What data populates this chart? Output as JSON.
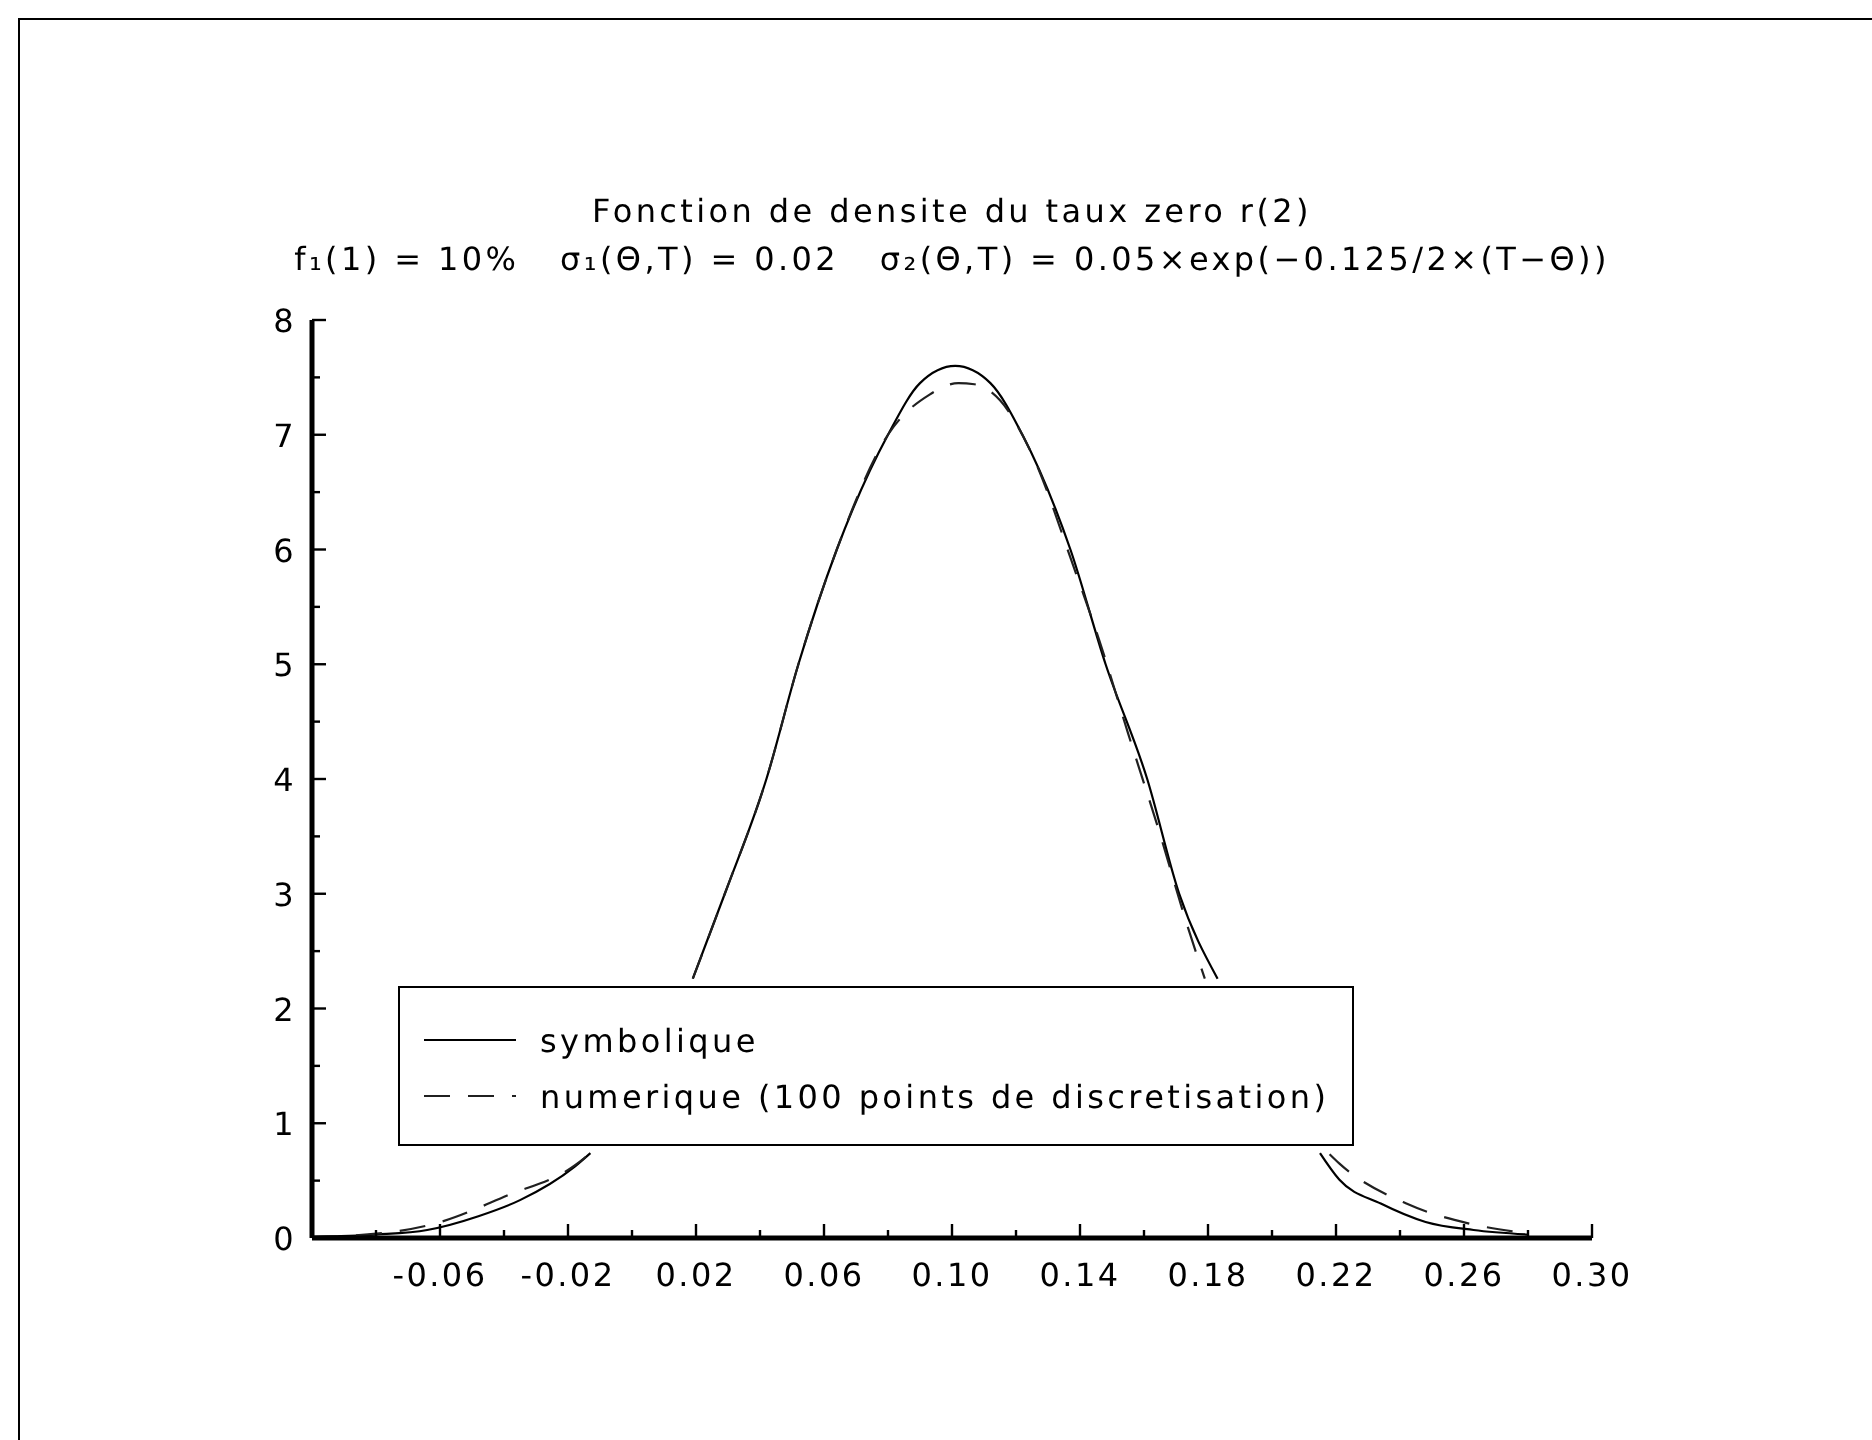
{
  "chart_data": {
    "type": "line",
    "title": "Fonction de densite du taux zero r(2)",
    "subtitle": "f₁(1) = 10%   σ₁(Θ,T) = 0.02   σ₂(Θ,T) = 0.05×exp(−0.125/2×(T−Θ))",
    "series": [
      {
        "name": "symbolique",
        "color": "#000000",
        "line_style": "solid",
        "x": [
          -0.1,
          -0.08,
          -0.064,
          -0.048,
          -0.035,
          -0.018,
          -0.013,
          0.003,
          0.019,
          0.029,
          0.042,
          0.052,
          0.064,
          0.08,
          0.09,
          0.101,
          0.112,
          0.122,
          0.137,
          0.148,
          0.161,
          0.171,
          0.183,
          0.199,
          0.215,
          0.221,
          0.234,
          0.248,
          0.263,
          0.28
        ],
        "values": [
          0.01,
          0.03,
          0.07,
          0.19,
          0.33,
          0.62,
          0.74,
          null,
          2.26,
          3.0,
          4.0,
          5.0,
          6.0,
          7.0,
          7.45,
          7.6,
          7.45,
          7.0,
          6.0,
          5.0,
          4.0,
          3.0,
          2.26,
          null,
          0.74,
          0.51,
          0.3,
          0.14,
          0.07,
          0.03
        ]
      },
      {
        "name": "numerique (100 points de discretisation)",
        "color": "#202020",
        "line_style": "dashed",
        "x": [
          -0.1,
          -0.079,
          -0.061,
          -0.039,
          -0.018,
          -0.013,
          0.003,
          0.019,
          0.029,
          0.042,
          0.052,
          0.064,
          0.08,
          0.093,
          0.102,
          0.107,
          0.115,
          0.125,
          0.138,
          0.146,
          0.155,
          0.165,
          0.173,
          0.179,
          0.197,
          0.218,
          0.221,
          0.242,
          0.261,
          0.28
        ],
        "values": [
          0.01,
          0.04,
          0.13,
          0.37,
          0.63,
          0.74,
          null,
          2.26,
          3.0,
          4.0,
          5.0,
          6.0,
          7.0,
          7.35,
          7.45,
          7.44,
          7.3,
          6.83,
          5.85,
          5.21,
          4.4,
          3.52,
          2.77,
          2.26,
          null,
          0.73,
          0.65,
          0.3,
          0.13,
          0.04
        ]
      }
    ],
    "xlim": [
      -0.1,
      0.3
    ],
    "xticks": [
      {
        "value": -0.08,
        "label": null
      },
      {
        "value": -0.06,
        "label": "-0.06"
      },
      {
        "value": -0.04,
        "label": null
      },
      {
        "value": -0.02,
        "label": "-0.02"
      },
      {
        "value": 0,
        "label": null
      },
      {
        "value": 0.02,
        "label": "0.02"
      },
      {
        "value": 0.04,
        "label": null
      },
      {
        "value": 0.06,
        "label": "0.06"
      },
      {
        "value": 0.08,
        "label": null
      },
      {
        "value": 0.1,
        "label": "0.10"
      },
      {
        "value": 0.12,
        "label": null
      },
      {
        "value": 0.14,
        "label": "0.14"
      },
      {
        "value": 0.16,
        "label": null
      },
      {
        "value": 0.18,
        "label": "0.18"
      },
      {
        "value": 0.2,
        "label": null
      },
      {
        "value": 0.22,
        "label": "0.22"
      },
      {
        "value": 0.24,
        "label": null
      },
      {
        "value": 0.26,
        "label": "0.26"
      },
      {
        "value": 0.28,
        "label": null
      },
      {
        "value": 0.3,
        "label": "0.30"
      }
    ],
    "ylim": [
      0,
      8
    ],
    "yticks": [
      0,
      {
        "value": 0.5,
        "label": null
      },
      1,
      {
        "value": 1.5,
        "label": null
      },
      2,
      {
        "value": 2.5,
        "label": null
      },
      3,
      {
        "value": 3.5,
        "label": null
      },
      4,
      {
        "value": 4.5,
        "label": null
      },
      5,
      {
        "value": 5.5,
        "label": null
      },
      6,
      {
        "value": 6.5,
        "label": null
      },
      7,
      {
        "value": 7.5,
        "label": null
      },
      8
    ],
    "legend": "bottom left"
  }
}
